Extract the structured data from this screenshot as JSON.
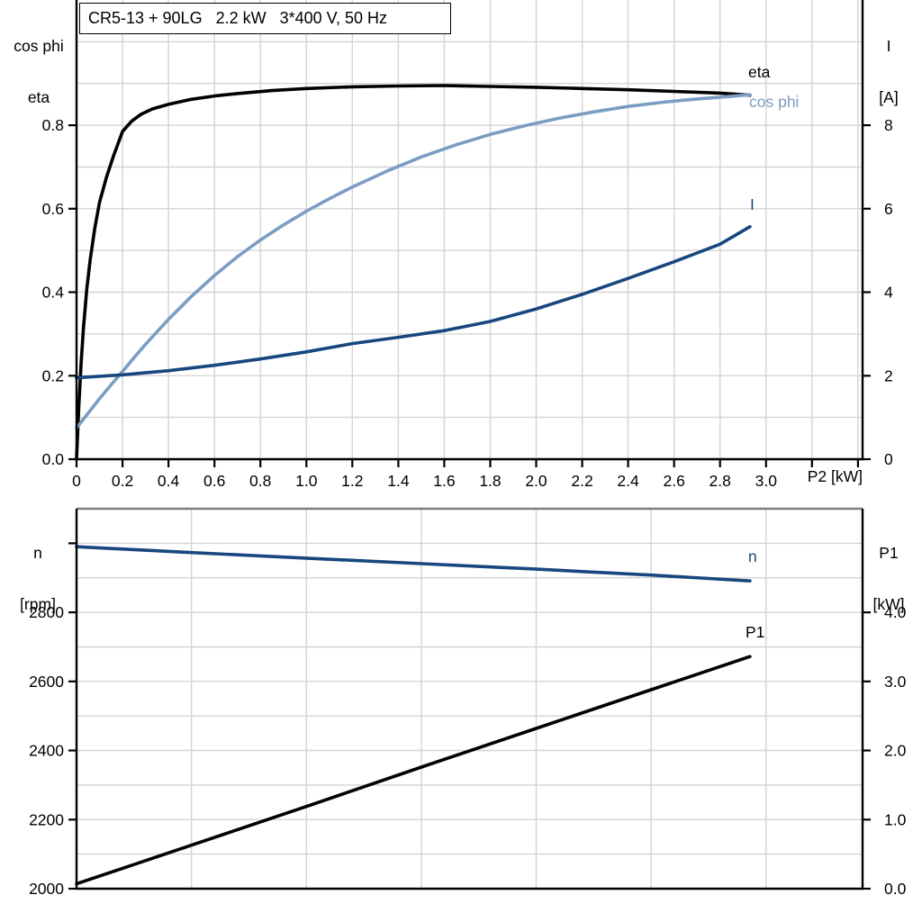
{
  "title_box": {
    "text": "CR5-13 + 90LG   2.2 kW   3*400 V, 50 Hz"
  },
  "colors": {
    "black": "#000000",
    "light_blue": "#7b9dc3",
    "dark_blue": "#17477e",
    "grid": "#d4d4d4",
    "frame": "#7f7f7f",
    "background": "#ffffff"
  },
  "top_chart": {
    "left_axis_title": [
      "cos phi",
      "eta"
    ],
    "right_axis_title": [
      "I",
      "[A]"
    ],
    "x_axis_title": "P2 [kW]",
    "curve_labels": {
      "eta": "eta",
      "cos_phi": "cos phi",
      "current": "I"
    }
  },
  "bottom_chart": {
    "left_axis_title": [
      "n",
      "[rpm]"
    ],
    "right_axis_title": [
      "P1",
      "[kW]"
    ],
    "curve_labels": {
      "n": "n",
      "p1": "P1"
    }
  },
  "chart_data": [
    {
      "type": "line",
      "name": "motor-efficiency-chart",
      "title": "CR5-13 + 90LG  2.2 kW  3*400 V, 50 Hz",
      "xlabel": "P2 [kW]",
      "x_range": [
        0,
        3.42
      ],
      "grid": {
        "x_step": 0.2,
        "y_step": 0.1
      },
      "frame_top": false,
      "left_axis": {
        "label": "cos phi / eta",
        "range": [
          0,
          1.1
        ],
        "ticks": [
          {
            "v": 0.0,
            "label": "0.0"
          },
          {
            "v": 0.2,
            "label": "0.2"
          },
          {
            "v": 0.4,
            "label": "0.4"
          },
          {
            "v": 0.6,
            "label": "0.6"
          },
          {
            "v": 0.8,
            "label": "0.8"
          }
        ]
      },
      "right_axis": {
        "label": "I [A]",
        "range": [
          0,
          11
        ],
        "ticks": [
          {
            "v": 0,
            "label": "0"
          },
          {
            "v": 2,
            "label": "2"
          },
          {
            "v": 4,
            "label": "4"
          },
          {
            "v": 6,
            "label": "6"
          },
          {
            "v": 8,
            "label": "8"
          }
        ]
      },
      "x_ticks": [
        {
          "v": 0,
          "label": "0"
        },
        {
          "v": 0.2,
          "label": "0.2"
        },
        {
          "v": 0.4,
          "label": "0.4"
        },
        {
          "v": 0.6,
          "label": "0.6"
        },
        {
          "v": 0.8,
          "label": "0.8"
        },
        {
          "v": 1.0,
          "label": "1.0"
        },
        {
          "v": 1.2,
          "label": "1.2"
        },
        {
          "v": 1.4,
          "label": "1.4"
        },
        {
          "v": 1.6,
          "label": "1.6"
        },
        {
          "v": 1.8,
          "label": "1.8"
        },
        {
          "v": 2.0,
          "label": "2.0"
        },
        {
          "v": 2.2,
          "label": "2.2"
        },
        {
          "v": 2.4,
          "label": "2.4"
        },
        {
          "v": 2.6,
          "label": "2.6"
        },
        {
          "v": 2.8,
          "label": "2.8"
        },
        {
          "v": 3.0,
          "label": "3.0"
        },
        {
          "v": 3.2,
          "label": ""
        },
        {
          "v": 3.4,
          "label": ""
        }
      ],
      "series": [
        {
          "id": "eta",
          "name": "eta",
          "axis": "left",
          "color_key": "black",
          "points": [
            [
              0,
              0
            ],
            [
              0.01,
              0.13
            ],
            [
              0.02,
              0.23
            ],
            [
              0.03,
              0.315
            ],
            [
              0.045,
              0.41
            ],
            [
              0.06,
              0.48
            ],
            [
              0.08,
              0.555
            ],
            [
              0.1,
              0.615
            ],
            [
              0.13,
              0.675
            ],
            [
              0.16,
              0.725
            ],
            [
              0.2,
              0.785
            ],
            [
              0.24,
              0.81
            ],
            [
              0.28,
              0.826
            ],
            [
              0.33,
              0.839
            ],
            [
              0.4,
              0.85
            ],
            [
              0.5,
              0.862
            ],
            [
              0.6,
              0.87
            ],
            [
              0.7,
              0.876
            ],
            [
              0.85,
              0.883
            ],
            [
              1.0,
              0.888
            ],
            [
              1.2,
              0.892
            ],
            [
              1.4,
              0.894
            ],
            [
              1.6,
              0.895
            ],
            [
              1.8,
              0.893
            ],
            [
              2.0,
              0.891
            ],
            [
              2.2,
              0.888
            ],
            [
              2.4,
              0.885
            ],
            [
              2.6,
              0.881
            ],
            [
              2.8,
              0.877
            ],
            [
              2.93,
              0.872
            ]
          ]
        },
        {
          "id": "cos-phi",
          "name": "cos phi",
          "axis": "left",
          "color_key": "light_blue",
          "points": [
            [
              0,
              0.075
            ],
            [
              0.05,
              0.11
            ],
            [
              0.1,
              0.145
            ],
            [
              0.15,
              0.178
            ],
            [
              0.2,
              0.21
            ],
            [
              0.25,
              0.243
            ],
            [
              0.3,
              0.275
            ],
            [
              0.4,
              0.335
            ],
            [
              0.5,
              0.39
            ],
            [
              0.6,
              0.44
            ],
            [
              0.7,
              0.485
            ],
            [
              0.8,
              0.525
            ],
            [
              0.9,
              0.561
            ],
            [
              1.0,
              0.594
            ],
            [
              1.1,
              0.624
            ],
            [
              1.2,
              0.652
            ],
            [
              1.35,
              0.69
            ],
            [
              1.5,
              0.724
            ],
            [
              1.65,
              0.753
            ],
            [
              1.8,
              0.778
            ],
            [
              1.95,
              0.799
            ],
            [
              2.1,
              0.817
            ],
            [
              2.25,
              0.832
            ],
            [
              2.4,
              0.845
            ],
            [
              2.55,
              0.855
            ],
            [
              2.7,
              0.863
            ],
            [
              2.82,
              0.868
            ],
            [
              2.93,
              0.873
            ]
          ]
        },
        {
          "id": "current",
          "name": "I",
          "axis": "right",
          "color_key": "dark_blue",
          "points": [
            [
              0,
              1.95
            ],
            [
              0.2,
              2.02
            ],
            [
              0.4,
              2.12
            ],
            [
              0.6,
              2.25
            ],
            [
              0.8,
              2.4
            ],
            [
              1.0,
              2.57
            ],
            [
              1.2,
              2.77
            ],
            [
              1.4,
              2.92
            ],
            [
              1.6,
              3.08
            ],
            [
              1.8,
              3.3
            ],
            [
              2.0,
              3.6
            ],
            [
              2.2,
              3.95
            ],
            [
              2.4,
              4.33
            ],
            [
              2.6,
              4.73
            ],
            [
              2.8,
              5.15
            ],
            [
              2.93,
              5.57
            ]
          ]
        }
      ]
    },
    {
      "type": "line",
      "name": "speed-power-chart",
      "xlabel": "",
      "x_range": [
        0,
        3.42
      ],
      "grid": {
        "x_step": 0.5,
        "y_step": 100
      },
      "frame_top": true,
      "left_axis": {
        "label": "n [rpm]",
        "range": [
          2000,
          3100
        ],
        "ticks": [
          {
            "v": 2000,
            "label": "2000"
          },
          {
            "v": 2200,
            "label": "2200"
          },
          {
            "v": 2400,
            "label": "2400"
          },
          {
            "v": 2600,
            "label": "2600"
          },
          {
            "v": 2800,
            "label": "2800"
          },
          {
            "v": 3000,
            "label": ""
          }
        ]
      },
      "right_axis": {
        "label": "P1 [kW]",
        "range": [
          0,
          5.5
        ],
        "ticks": [
          {
            "v": 0,
            "label": "0.0"
          },
          {
            "v": 1,
            "label": "1.0"
          },
          {
            "v": 2,
            "label": "2.0"
          },
          {
            "v": 3,
            "label": "3.0"
          },
          {
            "v": 4,
            "label": "4.0"
          }
        ]
      },
      "x_ticks": [],
      "series": [
        {
          "id": "speed",
          "name": "n",
          "axis": "left",
          "color_key": "dark_blue",
          "points": [
            [
              0,
              2990
            ],
            [
              0.5,
              2973
            ],
            [
              1.0,
              2957
            ],
            [
              1.5,
              2941
            ],
            [
              2.0,
              2925
            ],
            [
              2.5,
              2908
            ],
            [
              2.93,
              2891
            ]
          ]
        },
        {
          "id": "p1",
          "name": "P1",
          "axis": "right",
          "color_key": "black",
          "points": [
            [
              0,
              0.07
            ],
            [
              0.5,
              0.63
            ],
            [
              1.0,
              1.19
            ],
            [
              1.5,
              1.76
            ],
            [
              2.0,
              2.32
            ],
            [
              2.5,
              2.88
            ],
            [
              2.93,
              3.36
            ]
          ]
        }
      ]
    }
  ]
}
